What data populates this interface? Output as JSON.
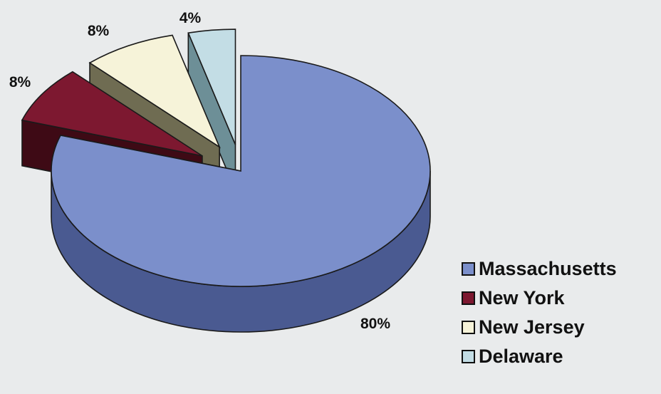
{
  "chart_data": {
    "type": "pie",
    "title": "",
    "style": "3d-exploded",
    "legend_position": "bottom-right",
    "categories": [
      "Massachusetts",
      "New York",
      "New Jersey",
      "Delaware"
    ],
    "values": [
      80,
      8,
      8,
      4
    ],
    "labels": [
      "80%",
      "8%",
      "8%",
      "4%"
    ],
    "colors": [
      "#7b8fcb",
      "#7d1830",
      "#f6f3d9",
      "#c3dde5"
    ],
    "side_colors": [
      "#4a5a91",
      "#3e0a15",
      "#6f6c52",
      "#6d8f97"
    ]
  }
}
